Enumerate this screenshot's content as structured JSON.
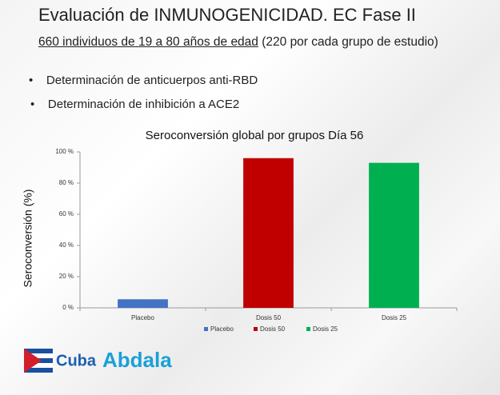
{
  "slide": {
    "title": "Evaluación de INMUNOGENICIDAD. EC Fase II",
    "subtitle_underlined": "660 individuos de 19 a 80 años de edad",
    "subtitle_rest": "(220 por cada grupo de estudio)",
    "bullets": [
      "Determinación de anticuerpos anti-RBD",
      "Determinación de inhibición a ACE2"
    ],
    "logos": [
      "Cuba",
      "Abdala"
    ]
  },
  "chart_data": {
    "type": "bar",
    "title": "Seroconversión global por grupos Día 56",
    "y_label": "Seroconversión  (%)",
    "categories": [
      "Placebo",
      "Dosis 50",
      "Dosis 25"
    ],
    "values": [
      5.5,
      96,
      93
    ],
    "colors": [
      "#4472c4",
      "#c00000",
      "#00b050"
    ],
    "ylim": [
      0,
      100
    ],
    "yticks": [
      {
        "value": 0,
        "label": "0 %"
      },
      {
        "value": 20,
        "label": "20 %"
      },
      {
        "value": 40,
        "label": "40 %"
      },
      {
        "value": 60,
        "label": "60 %"
      },
      {
        "value": 80,
        "label": "80 %"
      },
      {
        "value": 100,
        "label": "100 %"
      }
    ],
    "legend": "bottom"
  }
}
